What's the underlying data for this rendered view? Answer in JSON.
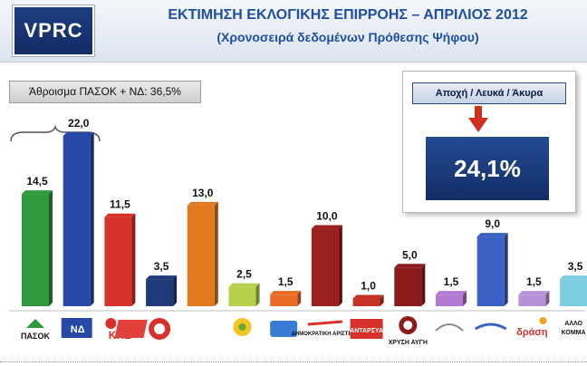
{
  "header": {
    "logo_text": "VPRC",
    "title": "ΕΚΤΙΜΗΣΗ ΕΚΛΟΓΙΚΗΣ ΕΠΙΡΡΟΗΣ – ΑΠΡΙΛΙΟΣ 2012",
    "subtitle": "(Χρονοσειρά δεδομένων Πρόθεσης Ψήφου)"
  },
  "annotations": {
    "sum_label": "Άθροισμα ΠΑΣΟΚ + ΝΔ: 36,5%",
    "abstention_label": "Αποχή / Λευκά / Άκυρα",
    "abstention_value": "24,1%"
  },
  "colors": {
    "header_blue": "#1e4fa2",
    "logo_navy": "#16336f",
    "arrow_red": "#d0311f"
  },
  "chart_data": {
    "type": "bar",
    "title": "ΕΚΤΙΜΗΣΗ ΕΚΛΟΓΙΚΗΣ ΕΠΙΡΡΟΗΣ – ΑΠΡΙΛΙΟΣ 2012",
    "subtitle": "(Χρονοσειρά δεδομένων Πρόθεσης Ψήφου)",
    "categories": [
      "ΠΑΣΟΚ",
      "ΝΔ",
      "ΚΚΕ",
      "ΛΑ.Ο.Σ.",
      "ΣΥΡΙΖΑ",
      "Οικολόγοι Πράσινοι",
      "Δημιουργία Ξανά",
      "ΔΗΜΟΚΡΑΤΙΚΗ ΑΡΙΣΤΕΡΑ",
      "ΑΝΤΑΡΣΥΑ",
      "ΧΡΥΣΗ ΑΥΓΗ",
      "Ανεξάρτητοι Έλληνες",
      "Δημοκρατική Συμμαχία",
      "δράση",
      "ΑΛΛΟ ΚΟΜΜΑ"
    ],
    "values": [
      14.5,
      22.0,
      11.5,
      3.5,
      13.0,
      2.5,
      1.5,
      10.0,
      1.0,
      5.0,
      1.5,
      9.0,
      1.5,
      3.5
    ],
    "value_labels": [
      "14,5",
      "22,0",
      "11,5",
      "3,5",
      "13,0",
      "2,5",
      "1,5",
      "10,0",
      "1,0",
      "5,0",
      "1,5",
      "9,0",
      "1,5",
      "3,5"
    ],
    "colors": [
      "#2f9a3c",
      "#2649a8",
      "#d8302b",
      "#1f3a78",
      "#e2791e",
      "#b6d24a",
      "#e86a25",
      "#9a1f1f",
      "#c63226",
      "#8c1b1b",
      "#b27ad2",
      "#3a61c4",
      "#b892d8",
      "#7dcde0"
    ],
    "logo_labels": [
      "ΠΑΣΟΚ",
      "ΝΔ",
      "ΚΚΕ",
      "",
      "",
      "",
      "",
      "ΔΗΜΟΚΡΑΤΙΚΗ ΑΡΙΣΤΕΡΑ",
      "ΑΝΤΑΡΣΥΑ",
      "ΧΡΥΣΗ ΑΥΓΗ",
      "",
      "",
      "δράση",
      "ΑΛΛΟ ΚΟΜΜΑ"
    ],
    "ylim": [
      0,
      24
    ],
    "grid": false,
    "legend": "none"
  }
}
